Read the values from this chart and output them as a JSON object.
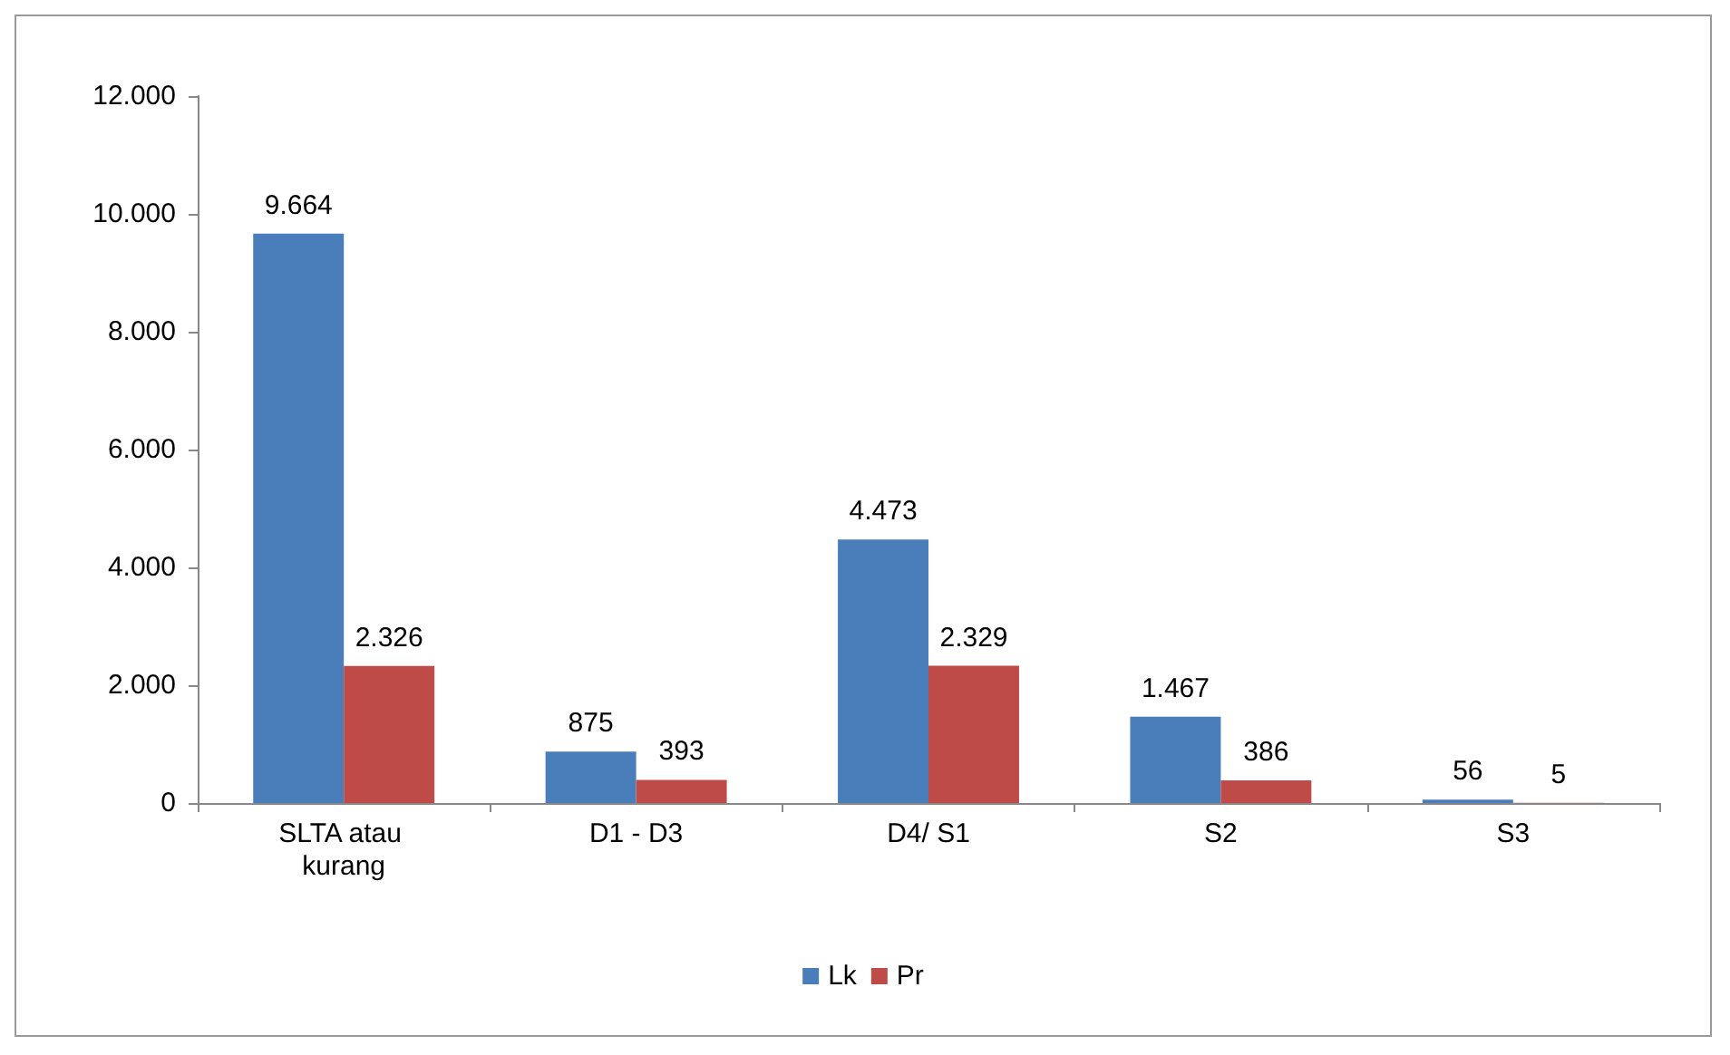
{
  "chart_data": {
    "type": "bar",
    "categories": [
      "SLTA atau kurang",
      "D1 - D3",
      "D4/ S1",
      "S2",
      "S3"
    ],
    "series": [
      {
        "name": "Lk",
        "color": "#4a7ebb",
        "values": [
          9664,
          875,
          4473,
          1467,
          56
        ],
        "value_labels": [
          "9.664",
          "875",
          "4.473",
          "1.467",
          "56"
        ]
      },
      {
        "name": "Pr",
        "color": "#be4b48",
        "values": [
          2326,
          393,
          2329,
          386,
          5
        ],
        "value_labels": [
          "2.326",
          "393",
          "2.329",
          "386",
          "5"
        ]
      }
    ],
    "ylim": [
      0,
      12000
    ],
    "yticks": [
      {
        "value": 0,
        "label": "0"
      },
      {
        "value": 2000,
        "label": "2.000"
      },
      {
        "value": 4000,
        "label": "4.000"
      },
      {
        "value": 6000,
        "label": "6.000"
      },
      {
        "value": 8000,
        "label": "8.000"
      },
      {
        "value": 10000,
        "label": "10.000"
      },
      {
        "value": 12000,
        "label": "12.000"
      }
    ],
    "grid": false,
    "legend": "bottom"
  }
}
